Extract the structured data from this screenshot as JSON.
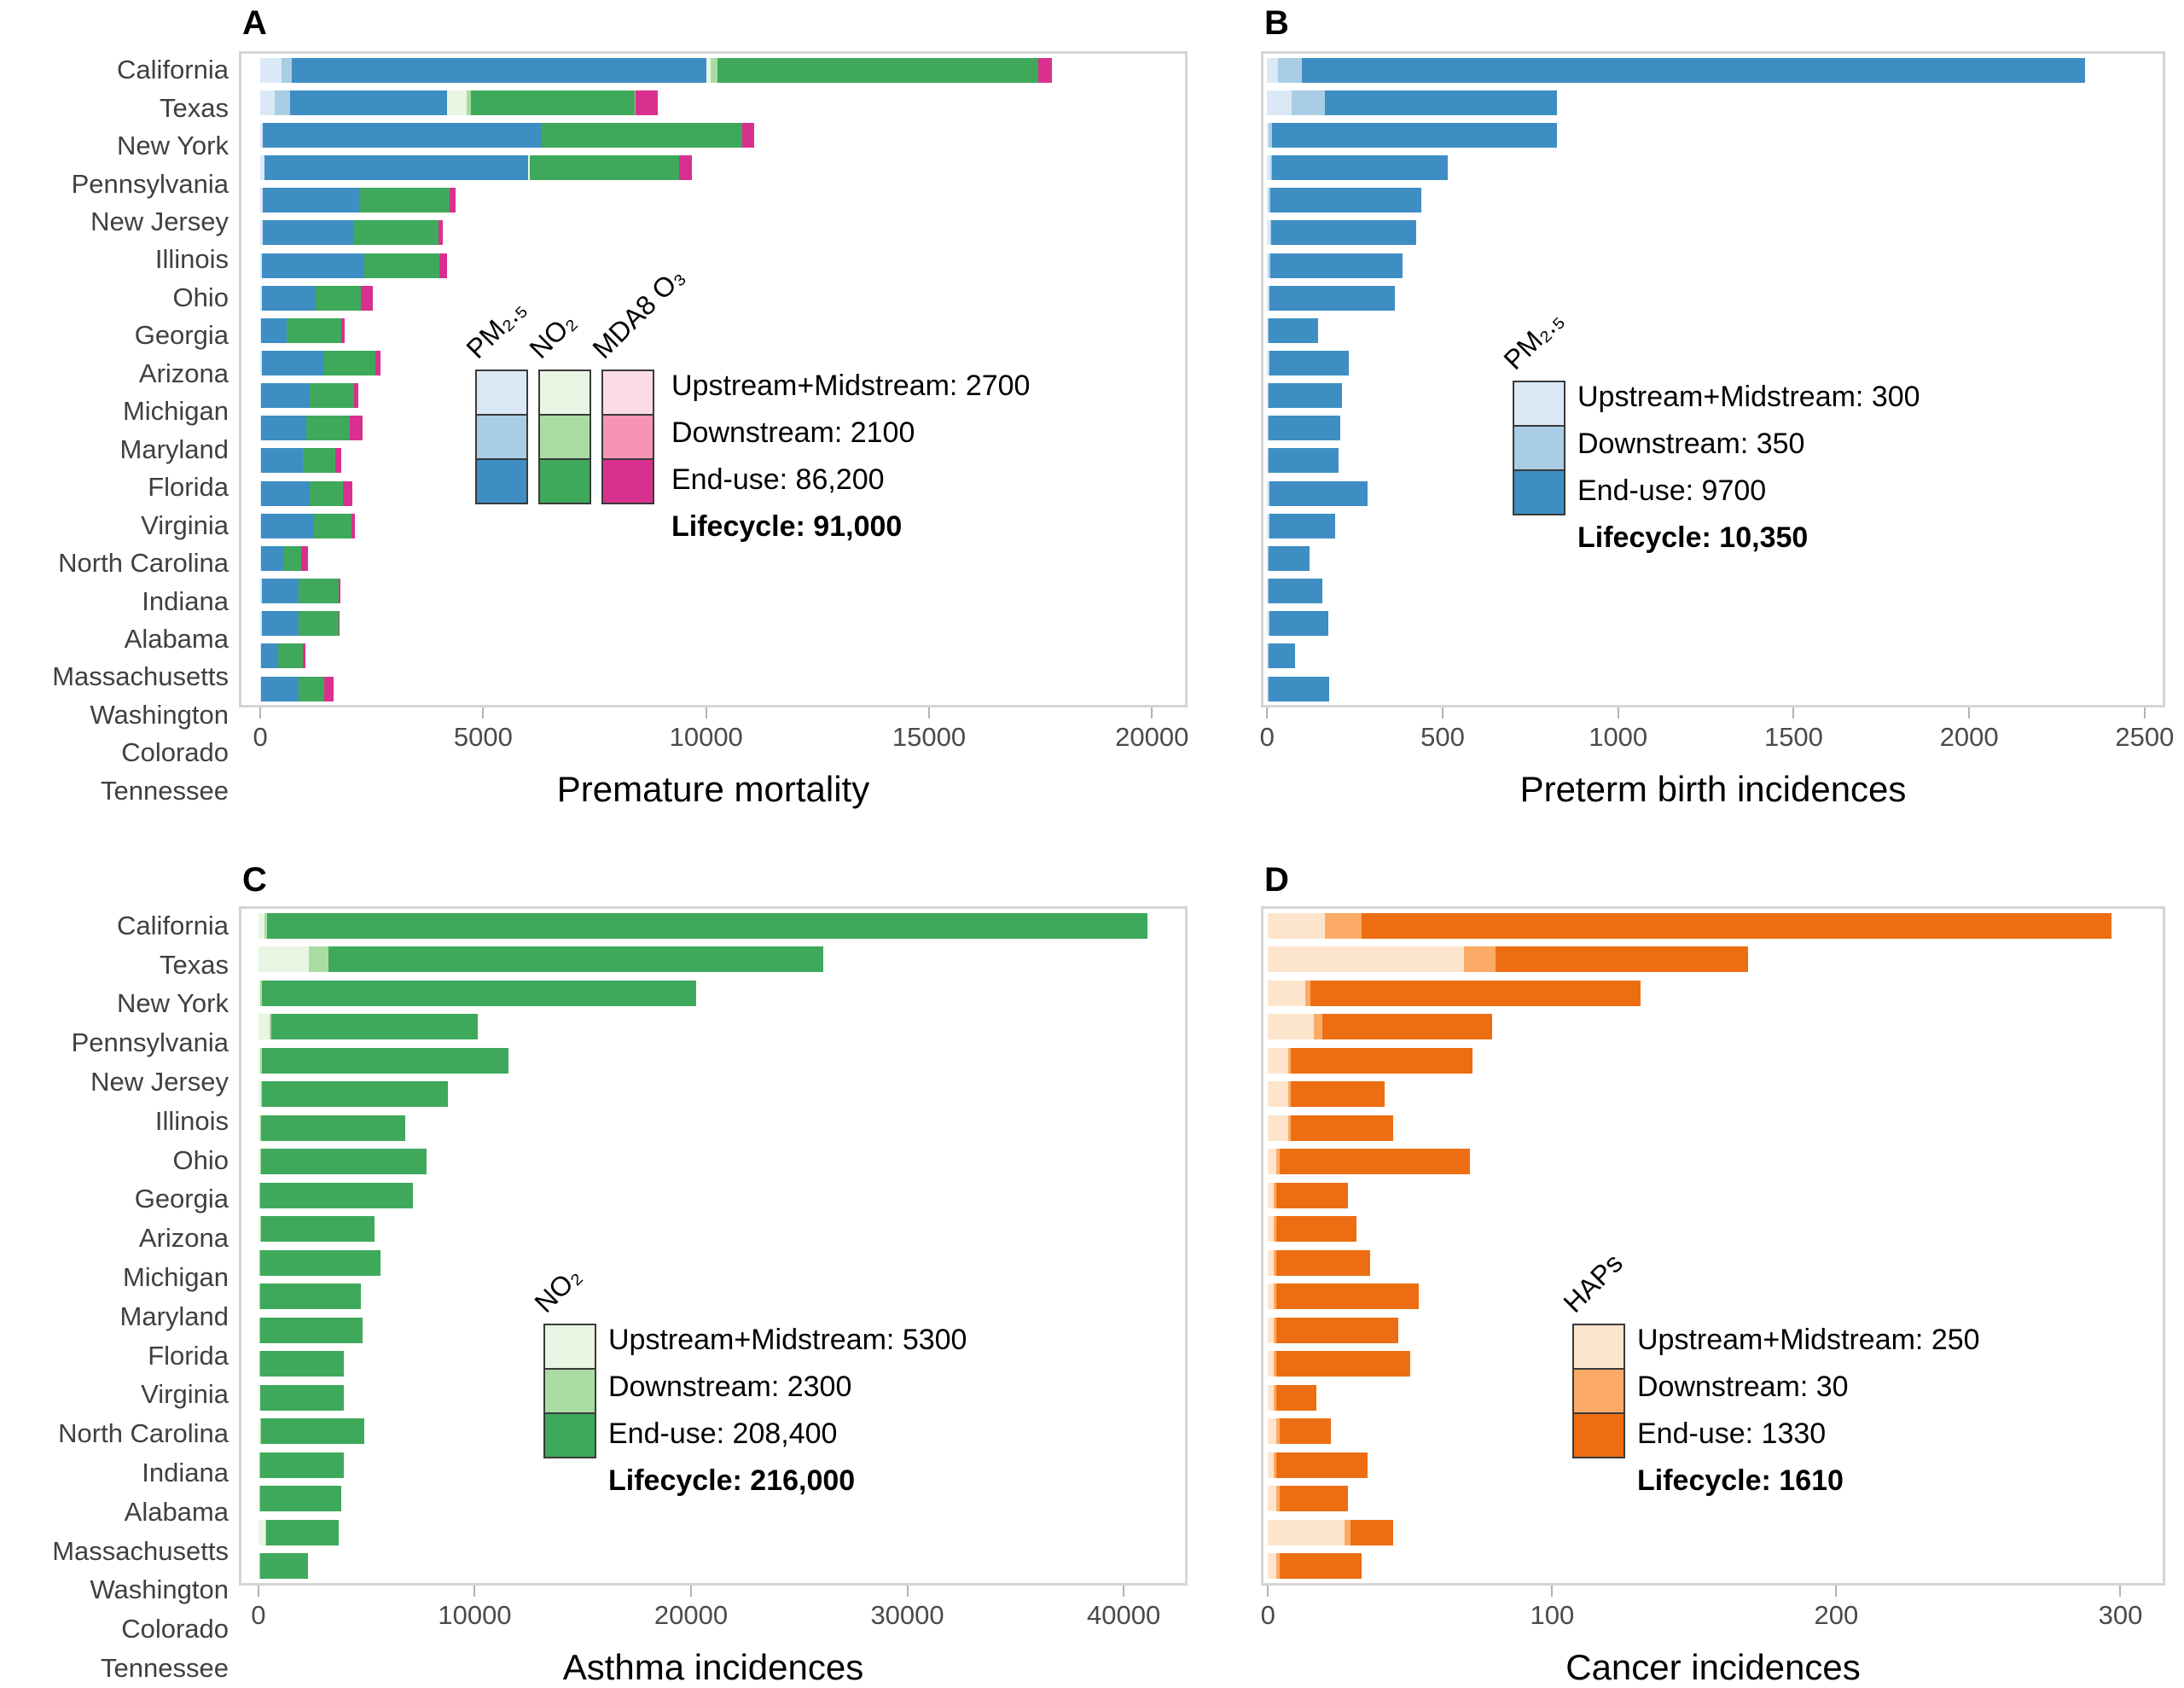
{
  "figure": {
    "background": "#ffffff",
    "panel_letters": [
      "A",
      "B",
      "C",
      "D"
    ]
  },
  "states": [
    "California",
    "Texas",
    "New York",
    "Pennsylvania",
    "New Jersey",
    "Illinois",
    "Ohio",
    "Georgia",
    "Arizona",
    "Michigan",
    "Maryland",
    "Florida",
    "Virginia",
    "North Carolina",
    "Indiana",
    "Alabama",
    "Massachusetts",
    "Washington",
    "Colorado",
    "Tennessee"
  ],
  "stage_names": [
    "Upstream+Midstream",
    "Downstream",
    "End-use"
  ],
  "colors": {
    "pm25_trio": [
      "#dbe9f6",
      "#a9cde4",
      "#3e8ec4"
    ],
    "no2_trio": [
      "#e8f6e3",
      "#a9dca3",
      "#3fa95b"
    ],
    "o3_trio": [
      "#fcdce6",
      "#f793b5",
      "#d9308f"
    ],
    "haps_trio": [
      "#fde5cd",
      "#fbab66",
      "#ed6e12"
    ],
    "panel_border": "#d5d5d5",
    "state_label_text": "#404040",
    "tick_text": "#4a4a4a"
  },
  "chart_data": [
    {
      "id": "chartA",
      "panel_label": "A",
      "type": "bar",
      "orientation": "horizontal-stacked",
      "xlabel": "Premature mortality",
      "tick_values": [
        0,
        5000,
        10000,
        15000,
        20000
      ],
      "tick_labels": [
        "0",
        "5000",
        "10000",
        "15000",
        "20000"
      ],
      "tick_max": 20000,
      "inset_pct": 2.0,
      "max_pct": 96.5,
      "grid": "off",
      "pollutants": [
        "PM₂.₅",
        "NO₂",
        "MDA8 O₃"
      ],
      "segment_colors": [
        "#dbe9f6",
        "#a9cde4",
        "#3e8ec4",
        "#e8f6e3",
        "#a9dca3",
        "#3fa95b",
        "#fcdce6",
        "#f793b5",
        "#d9308f"
      ],
      "legend": {
        "lines": [
          {
            "text": "Upstream+Midstream: 2700"
          },
          {
            "text": "Downstream: 2100"
          },
          {
            "text": "End-use: 86,200"
          }
        ],
        "lifecycle": "Lifecycle: 91,000"
      },
      "categories": [
        "California",
        "Texas",
        "New York",
        "Pennsylvania",
        "New Jersey",
        "Illinois",
        "Ohio",
        "Georgia",
        "Arizona",
        "Michigan",
        "Maryland",
        "Florida",
        "Virginia",
        "North Carolina",
        "Indiana",
        "Alabama",
        "Massachusetts",
        "Washington",
        "Colorado",
        "Tennessee"
      ],
      "values": [
        [
          480,
          230,
          9290,
          100,
          150,
          7200,
          0,
          0,
          300
        ],
        [
          330,
          340,
          3520,
          430,
          100,
          3670,
          0,
          30,
          500
        ],
        [
          50,
          0,
          6260,
          0,
          0,
          4500,
          0,
          0,
          270
        ],
        [
          100,
          0,
          5900,
          50,
          0,
          3340,
          0,
          0,
          300
        ],
        [
          60,
          0,
          2150,
          0,
          0,
          2040,
          0,
          0,
          130
        ],
        [
          60,
          0,
          2040,
          0,
          0,
          1900,
          0,
          0,
          90
        ],
        [
          40,
          0,
          2290,
          0,
          0,
          1680,
          0,
          0,
          170
        ],
        [
          30,
          0,
          1210,
          0,
          0,
          1020,
          0,
          0,
          260
        ],
        [
          20,
          0,
          580,
          0,
          0,
          1210,
          0,
          0,
          90
        ],
        [
          30,
          0,
          1390,
          0,
          0,
          1160,
          0,
          0,
          120
        ],
        [
          20,
          0,
          1090,
          0,
          0,
          990,
          0,
          0,
          90
        ],
        [
          20,
          0,
          1010,
          0,
          0,
          970,
          0,
          0,
          290
        ],
        [
          20,
          0,
          930,
          0,
          0,
          740,
          0,
          0,
          120
        ],
        [
          20,
          0,
          1090,
          0,
          0,
          740,
          0,
          0,
          220
        ],
        [
          20,
          0,
          1190,
          0,
          0,
          830,
          0,
          0,
          90
        ],
        [
          20,
          0,
          500,
          0,
          0,
          400,
          0,
          0,
          140
        ],
        [
          30,
          0,
          830,
          0,
          0,
          890,
          0,
          0,
          40
        ],
        [
          30,
          0,
          830,
          0,
          0,
          890,
          0,
          0,
          10
        ],
        [
          20,
          0,
          380,
          0,
          0,
          560,
          0,
          0,
          60
        ],
        [
          20,
          0,
          845,
          0,
          0,
          575,
          0,
          0,
          210
        ]
      ]
    },
    {
      "id": "chartB",
      "panel_label": "B",
      "type": "bar",
      "orientation": "horizontal-stacked",
      "xlabel": "Preterm birth incidences",
      "tick_values": [
        0,
        500,
        1000,
        1500,
        2000,
        2500
      ],
      "tick_labels": [
        "0",
        "500",
        "1000",
        "1500",
        "2000",
        "2500"
      ],
      "tick_max": 2500,
      "inset_pct": 0.4,
      "max_pct": 98.0,
      "grid": "off",
      "pollutants": [
        "PM₂.₅"
      ],
      "segment_colors": [
        "#dbe9f6",
        "#a9cde4",
        "#3e8ec4"
      ],
      "legend": {
        "lines": [
          {
            "text": "Upstream+Midstream: 300"
          },
          {
            "text": "Downstream: 350"
          },
          {
            "text": "End-use: 9700"
          }
        ],
        "lifecycle": "Lifecycle: 10,350"
      },
      "categories": [
        "California",
        "Texas",
        "New York",
        "Pennsylvania",
        "New Jersey",
        "Illinois",
        "Ohio",
        "Georgia",
        "Arizona",
        "Michigan",
        "Maryland",
        "Florida",
        "Virginia",
        "North Carolina",
        "Indiana",
        "Alabama",
        "Massachusetts",
        "Washington",
        "Colorado",
        "Tennessee"
      ],
      "values": [
        [
          30,
          70,
          2230
        ],
        [
          70,
          95,
          660
        ],
        [
          5,
          10,
          810
        ],
        [
          10,
          5,
          500
        ],
        [
          5,
          5,
          430
        ],
        [
          8,
          4,
          413
        ],
        [
          5,
          4,
          376
        ],
        [
          4,
          3,
          358
        ],
        [
          3,
          2,
          140
        ],
        [
          4,
          3,
          226
        ],
        [
          3,
          2,
          209
        ],
        [
          3,
          2,
          204
        ],
        [
          3,
          2,
          199
        ],
        [
          4,
          3,
          280
        ],
        [
          4,
          2,
          188
        ],
        [
          3,
          2,
          116
        ],
        [
          3,
          2,
          153
        ],
        [
          4,
          2,
          169
        ],
        [
          3,
          2,
          75
        ],
        [
          3,
          2,
          172
        ]
      ]
    },
    {
      "id": "chartC",
      "panel_label": "C",
      "type": "bar",
      "orientation": "horizontal-stacked",
      "xlabel": "Asthma incidences",
      "tick_values": [
        0,
        10000,
        20000,
        30000,
        40000
      ],
      "tick_labels": [
        "0",
        "10000",
        "20000",
        "30000",
        "40000"
      ],
      "tick_max": 40000,
      "inset_pct": 1.8,
      "max_pct": 93.5,
      "grid": "off",
      "pollutants": [
        "NO₂"
      ],
      "segment_colors": [
        "#e8f6e3",
        "#a9dca3",
        "#3fa95b"
      ],
      "legend": {
        "lines": [
          {
            "text": "Upstream+Midstream: 5300"
          },
          {
            "text": "Downstream: 2300"
          },
          {
            "text": "End-use: 208,400"
          }
        ],
        "lifecycle": "Lifecycle: 216,000"
      },
      "categories": [
        "California",
        "Texas",
        "New York",
        "Pennsylvania",
        "New Jersey",
        "Illinois",
        "Ohio",
        "Georgia",
        "Arizona",
        "Michigan",
        "Maryland",
        "Florida",
        "Virginia",
        "North Carolina",
        "Indiana",
        "Alabama",
        "Massachusetts",
        "Washington",
        "Colorado",
        "Tennessee"
      ],
      "values": [
        [
          280,
          120,
          40700
        ],
        [
          2330,
          900,
          22870
        ],
        [
          100,
          80,
          20060
        ],
        [
          510,
          80,
          9550
        ],
        [
          100,
          60,
          11400
        ],
        [
          120,
          60,
          8580
        ],
        [
          90,
          50,
          6640
        ],
        [
          70,
          40,
          7660
        ],
        [
          60,
          40,
          7040
        ],
        [
          70,
          40,
          5250
        ],
        [
          60,
          40,
          5540
        ],
        [
          60,
          40,
          4630
        ],
        [
          60,
          40,
          4710
        ],
        [
          60,
          30,
          3850
        ],
        [
          70,
          30,
          3840
        ],
        [
          80,
          40,
          4770
        ],
        [
          50,
          30,
          3860
        ],
        [
          50,
          30,
          3750
        ],
        [
          300,
          60,
          3350
        ],
        [
          60,
          30,
          2200
        ]
      ]
    },
    {
      "id": "chartD",
      "panel_label": "D",
      "type": "bar",
      "orientation": "horizontal-stacked",
      "xlabel": "Cancer incidences",
      "tick_values": [
        0,
        100,
        200,
        300
      ],
      "tick_labels": [
        "0",
        "100",
        "200",
        "300"
      ],
      "tick_max": 300,
      "inset_pct": 0.5,
      "max_pct": 95.3,
      "grid": "off",
      "pollutants": [
        "HAPs"
      ],
      "segment_colors": [
        "#fde5cd",
        "#fbab66",
        "#ed6e12"
      ],
      "legend": {
        "lines": [
          {
            "text": "Upstream+Midstream: 250"
          },
          {
            "text": "Downstream: 30"
          },
          {
            "text": "End-use: 1330"
          }
        ],
        "lifecycle": "Lifecycle: 1610"
      },
      "categories": [
        "California",
        "Texas",
        "New York",
        "Pennsylvania",
        "New Jersey",
        "Illinois",
        "Ohio",
        "Georgia",
        "Arizona",
        "Michigan",
        "Maryland",
        "Florida",
        "Virginia",
        "North Carolina",
        "Indiana",
        "Alabama",
        "Massachusetts",
        "Washington",
        "Colorado",
        "Tennessee"
      ],
      "values": [
        [
          20,
          13,
          264
        ],
        [
          69,
          11,
          89
        ],
        [
          13,
          2,
          116
        ],
        [
          16,
          3,
          60
        ],
        [
          7,
          1,
          64
        ],
        [
          7,
          1,
          33
        ],
        [
          7,
          1,
          36
        ],
        [
          3,
          1,
          67
        ],
        [
          2,
          1,
          25
        ],
        [
          2,
          1,
          28
        ],
        [
          2,
          1,
          33
        ],
        [
          2,
          1,
          50
        ],
        [
          2,
          1,
          43
        ],
        [
          2,
          1,
          47
        ],
        [
          2,
          1,
          14
        ],
        [
          3,
          1,
          18
        ],
        [
          2,
          1,
          32
        ],
        [
          3,
          1,
          24
        ],
        [
          27,
          2,
          15
        ],
        [
          3,
          1,
          29
        ]
      ]
    }
  ]
}
